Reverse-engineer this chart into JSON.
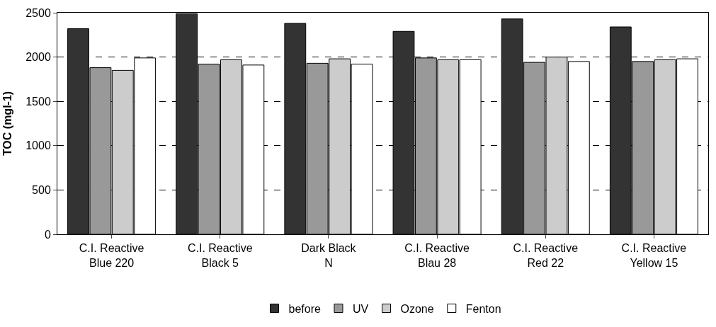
{
  "chart_data": {
    "type": "bar",
    "ylabel": "TOC (mgl-1)",
    "categories": [
      "C.I. Reactive Blue 220",
      "C.I. Reactive Black 5",
      "Dark Black N",
      "C.I. Reactive Blau 28",
      "C.I. Reactive Red 22",
      "C.I. Reactive Yellow 15"
    ],
    "series": [
      {
        "name": "before",
        "color": "#333333",
        "values": [
          2320,
          2490,
          2380,
          2290,
          2430,
          2340
        ]
      },
      {
        "name": "UV",
        "color": "#999999",
        "values": [
          1880,
          1920,
          1930,
          1990,
          1940,
          1950
        ]
      },
      {
        "name": "Ozone",
        "color": "#cccccc",
        "values": [
          1850,
          1970,
          1980,
          1970,
          2000,
          1970
        ]
      },
      {
        "name": "Fenton",
        "color": "#ffffff",
        "values": [
          1990,
          1910,
          1920,
          1970,
          1950,
          1980
        ]
      }
    ],
    "ylim": [
      0,
      2500
    ],
    "yticks": [
      0,
      500,
      1000,
      1500,
      2000,
      2500
    ],
    "grid": "y",
    "legend": "bottom"
  }
}
